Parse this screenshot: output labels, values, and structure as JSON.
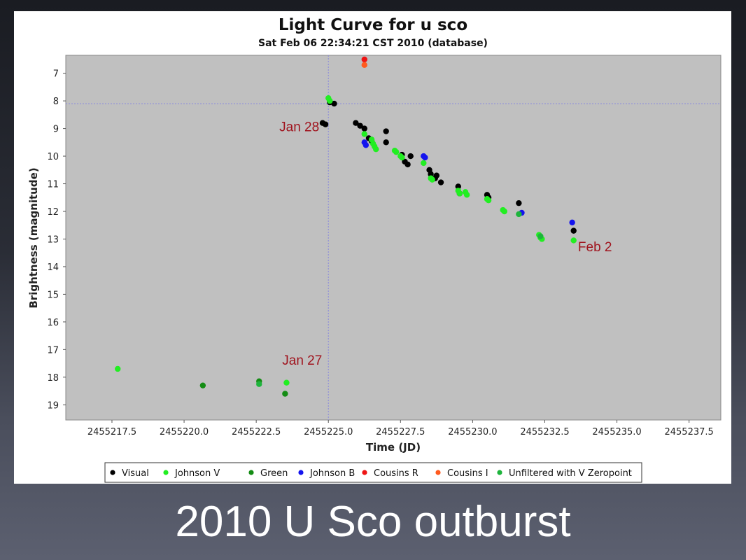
{
  "slide": {
    "caption": "2010 U Sco outburst"
  },
  "chart_data": {
    "type": "scatter",
    "title": "Light Curve for u sco",
    "subtitle": "Sat Feb 06 22:34:21 CST 2010 (database)",
    "xlabel": "Time (JD)",
    "ylabel": "Brightness (magnitude)",
    "xlim": [
      2455215.9,
      2455238.6
    ],
    "ylim": [
      19.55,
      6.35
    ],
    "y_inverted": true,
    "grid": false,
    "background": "#c0c0c0",
    "x_ticks": [
      2455217.5,
      2455220.0,
      2455222.5,
      2455225.0,
      2455227.5,
      2455230.0,
      2455232.5,
      2455235.0,
      2455237.5
    ],
    "x_tick_labels": [
      "2455217.5",
      "2455220.0",
      "2455222.5",
      "2455225.0",
      "2455227.5",
      "2455230.0",
      "2455232.5",
      "2455235.0",
      "2455237.5"
    ],
    "y_ticks": [
      7,
      8,
      9,
      10,
      11,
      12,
      13,
      14,
      15,
      16,
      17,
      18,
      19
    ],
    "y_tick_labels": [
      "7",
      "8",
      "9",
      "10",
      "11",
      "12",
      "13",
      "14",
      "15",
      "16",
      "17",
      "18",
      "19"
    ],
    "crosshair": {
      "x": 2455225.0,
      "y": 8.1,
      "color": "#8888dd"
    },
    "legend_position": "bottom",
    "series": [
      {
        "name": "Visual",
        "color": "#000000",
        "points": [
          [
            2455224.8,
            8.8
          ],
          [
            2455224.9,
            8.85
          ],
          [
            2455225.05,
            8.05
          ],
          [
            2455225.2,
            8.1
          ],
          [
            2455225.95,
            8.8
          ],
          [
            2455226.1,
            8.9
          ],
          [
            2455226.25,
            9.0
          ],
          [
            2455226.4,
            9.35
          ],
          [
            2455226.5,
            9.45
          ],
          [
            2455227.0,
            9.1
          ],
          [
            2455227.0,
            9.5
          ],
          [
            2455227.55,
            9.95
          ],
          [
            2455227.65,
            10.2
          ],
          [
            2455227.75,
            10.3
          ],
          [
            2455227.85,
            10.0
          ],
          [
            2455228.5,
            10.5
          ],
          [
            2455228.55,
            10.65
          ],
          [
            2455228.7,
            10.8
          ],
          [
            2455228.75,
            10.7
          ],
          [
            2455228.9,
            10.95
          ],
          [
            2455229.5,
            11.1
          ],
          [
            2455229.55,
            11.35
          ],
          [
            2455230.5,
            11.4
          ],
          [
            2455230.55,
            11.5
          ],
          [
            2455231.6,
            11.7
          ],
          [
            2455233.5,
            12.7
          ]
        ]
      },
      {
        "name": "Johnson V",
        "color": "#22ee22",
        "points": [
          [
            2455225.0,
            7.9
          ],
          [
            2455225.05,
            8.0
          ],
          [
            2455226.25,
            9.2
          ],
          [
            2455226.5,
            9.4
          ],
          [
            2455226.55,
            9.55
          ],
          [
            2455226.6,
            9.65
          ],
          [
            2455226.65,
            9.75
          ],
          [
            2455227.3,
            9.8
          ],
          [
            2455227.35,
            9.85
          ],
          [
            2455227.5,
            10.0
          ],
          [
            2455227.55,
            10.05
          ],
          [
            2455228.3,
            10.25
          ],
          [
            2455228.55,
            10.8
          ],
          [
            2455228.6,
            10.85
          ],
          [
            2455229.5,
            11.25
          ],
          [
            2455229.55,
            11.35
          ],
          [
            2455229.75,
            11.3
          ],
          [
            2455229.8,
            11.4
          ],
          [
            2455230.5,
            11.55
          ],
          [
            2455230.55,
            11.6
          ],
          [
            2455231.05,
            11.95
          ],
          [
            2455231.1,
            12.0
          ],
          [
            2455232.3,
            12.85
          ],
          [
            2455232.35,
            12.95
          ],
          [
            2455232.4,
            13.0
          ],
          [
            2455233.5,
            13.05
          ],
          [
            2455217.7,
            17.7
          ],
          [
            2455223.55,
            18.2
          ]
        ]
      },
      {
        "name": "Green",
        "color": "#148c14",
        "points": [
          [
            2455220.65,
            18.3
          ],
          [
            2455222.6,
            18.15
          ],
          [
            2455223.5,
            18.6
          ]
        ]
      },
      {
        "name": "Johnson B",
        "color": "#1414ee",
        "points": [
          [
            2455226.25,
            9.5
          ],
          [
            2455226.3,
            9.6
          ],
          [
            2455228.3,
            10.0
          ],
          [
            2455228.35,
            10.05
          ],
          [
            2455231.7,
            12.05
          ],
          [
            2455233.45,
            12.4
          ]
        ]
      },
      {
        "name": "Cousins R",
        "color": "#ee1414",
        "points": [
          [
            2455226.25,
            6.5
          ]
        ]
      },
      {
        "name": "Cousins I",
        "color": "#ff5a1e",
        "points": [
          [
            2455226.25,
            6.7
          ]
        ]
      },
      {
        "name": "Unfiltered with V Zeropoint",
        "color": "#1eb43c",
        "points": [
          [
            2455222.6,
            18.25
          ],
          [
            2455231.6,
            12.1
          ],
          [
            2455232.35,
            12.9
          ]
        ]
      }
    ],
    "annotations": [
      {
        "text": "Jan 28",
        "x": 2455223.3,
        "y": 9.1
      },
      {
        "text": "Jan 27",
        "x": 2455223.4,
        "y": 17.55
      },
      {
        "text": "Feb 2",
        "x": 2455233.65,
        "y": 13.45
      }
    ]
  }
}
